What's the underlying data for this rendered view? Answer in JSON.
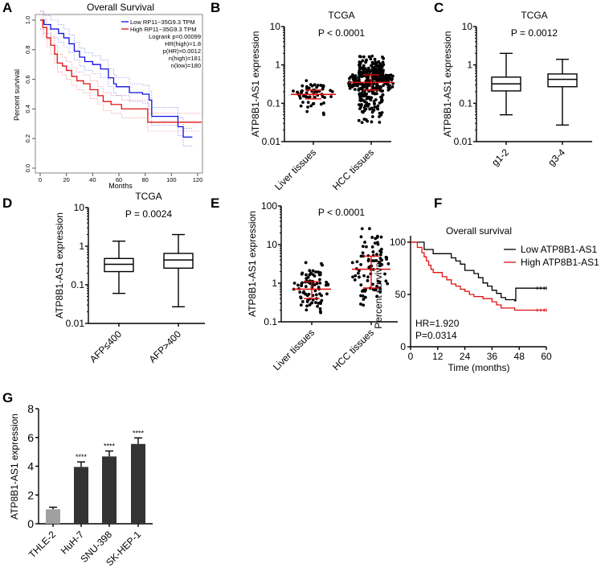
{
  "chart_data": [
    {
      "panel": "A",
      "type": "line",
      "title": "Overall Survival",
      "xlabel": "Months",
      "ylabel": "Percent survival",
      "xlim": [
        0,
        125
      ],
      "ylim": [
        0,
        1
      ],
      "xticks": [
        0,
        20,
        40,
        60,
        80,
        100,
        120
      ],
      "yticks": [
        "0.0",
        "0.2",
        "0.4",
        "0.6",
        "0.8",
        "1.0"
      ],
      "annotations": [
        "Logrank p=0.00099",
        "HR(high)=1.8",
        "p(HR)=0.0012",
        "n(high)=181",
        "n(low)=180"
      ],
      "series": [
        {
          "name": "Low RP11−35G9.3 TPM",
          "color": "#1010e0",
          "points": [
            [
              0,
              1
            ],
            [
              3,
              0.97
            ],
            [
              8,
              0.94
            ],
            [
              14,
              0.91
            ],
            [
              18,
              0.88
            ],
            [
              22,
              0.84
            ],
            [
              26,
              0.79
            ],
            [
              30,
              0.75
            ],
            [
              34,
              0.72
            ],
            [
              40,
              0.7
            ],
            [
              46,
              0.67
            ],
            [
              52,
              0.61
            ],
            [
              56,
              0.57
            ],
            [
              58,
              0.55
            ],
            [
              68,
              0.51
            ],
            [
              78,
              0.5
            ],
            [
              83,
              0.46
            ],
            [
              85,
              0.35
            ],
            [
              105,
              0.28
            ],
            [
              109,
              0.21
            ],
            [
              116,
              0.21
            ]
          ]
        },
        {
          "name": "High RP11−35G9.3 TPM",
          "color": "#e01010",
          "points": [
            [
              0,
              1
            ],
            [
              2,
              0.95
            ],
            [
              5,
              0.88
            ],
            [
              8,
              0.83
            ],
            [
              11,
              0.77
            ],
            [
              13,
              0.71
            ],
            [
              17,
              0.69
            ],
            [
              20,
              0.66
            ],
            [
              24,
              0.62
            ],
            [
              28,
              0.59
            ],
            [
              33,
              0.57
            ],
            [
              38,
              0.53
            ],
            [
              44,
              0.49
            ],
            [
              48,
              0.45
            ],
            [
              54,
              0.43
            ],
            [
              62,
              0.4
            ],
            [
              82,
              0.31
            ],
            [
              123,
              0.31
            ]
          ]
        }
      ]
    },
    {
      "panel": "B",
      "type": "scatter",
      "title": "TCGA",
      "subtitle": "P < 0.0001",
      "ylabel": "ATP8B1-AS1 expression",
      "yscale": "log",
      "ylim": [
        0.01,
        10
      ],
      "yticks": [
        "0.01",
        "0.1",
        "1",
        "10"
      ],
      "categories": [
        "Liver tissues",
        "HCC tissues"
      ],
      "groups": [
        {
          "median": 0.17,
          "q1": 0.13,
          "q3": 0.22,
          "min": 0.05,
          "max": 0.42
        },
        {
          "median": 0.35,
          "q1": 0.22,
          "q3": 0.55,
          "min": 0.027,
          "max": 2.0
        }
      ]
    },
    {
      "panel": "C",
      "type": "box",
      "title": "TCGA",
      "subtitle": "P = 0.0012",
      "ylabel": "ATP8B1-AS1 expression",
      "yscale": "log",
      "ylim": [
        0.01,
        10
      ],
      "yticks": [
        "0.01",
        "0.1",
        "1",
        "10"
      ],
      "categories": [
        "g1-2",
        "g3-4"
      ],
      "boxes": [
        {
          "min": 0.05,
          "q1": 0.21,
          "median": 0.32,
          "q3": 0.48,
          "max": 2.0
        },
        {
          "min": 0.027,
          "q1": 0.27,
          "median": 0.42,
          "q3": 0.58,
          "max": 1.4
        }
      ]
    },
    {
      "panel": "D",
      "type": "box",
      "title": "TCGA",
      "subtitle": "P = 0.0024",
      "ylabel": "ATP8B1-AS1 expression",
      "yscale": "log",
      "ylim": [
        0.01,
        10
      ],
      "yticks": [
        "0.01",
        "0.1",
        "1",
        "10"
      ],
      "categories": [
        "AFP≤400",
        "AFP>400"
      ],
      "boxes": [
        {
          "min": 0.06,
          "q1": 0.22,
          "median": 0.34,
          "q3": 0.48,
          "max": 1.35
        },
        {
          "min": 0.027,
          "q1": 0.27,
          "median": 0.44,
          "q3": 0.65,
          "max": 2.0
        }
      ]
    },
    {
      "panel": "E",
      "type": "scatter",
      "title": "",
      "subtitle": "P < 0.0001",
      "ylabel": "ATP8B1-AS1 expression",
      "yscale": "log",
      "ylim": [
        0.1,
        100
      ],
      "yticks": [
        "0.1",
        "1",
        "10",
        "100"
      ],
      "categories": [
        "Liver tissues",
        "HCC tissues"
      ],
      "groups": [
        {
          "median": 0.7,
          "q1": 0.4,
          "q3": 1.1,
          "min": 0.17,
          "max": 4.0
        },
        {
          "median": 2.3,
          "q1": 0.75,
          "q3": 5.0,
          "min": 0.25,
          "max": 35
        }
      ]
    },
    {
      "panel": "F",
      "type": "line",
      "title": "Overall survival",
      "xlabel": "Time (months)",
      "ylabel": "Percent survival",
      "xlim": [
        0,
        60
      ],
      "ylim": [
        0,
        100
      ],
      "xticks": [
        0,
        12,
        24,
        36,
        48,
        60
      ],
      "yticks": [
        "0",
        "50",
        "100"
      ],
      "annotations": [
        "HR=1.920",
        "P=0.0314"
      ],
      "series": [
        {
          "name": "Low ATP8B1-AS1",
          "color": "#000000",
          "points": [
            [
              0,
              100
            ],
            [
              6,
              93
            ],
            [
              10,
              89
            ],
            [
              16,
              89
            ],
            [
              18,
              85
            ],
            [
              20,
              82
            ],
            [
              22,
              79
            ],
            [
              24,
              73
            ],
            [
              28,
              70
            ],
            [
              30,
              66
            ],
            [
              32,
              61
            ],
            [
              34,
              58
            ],
            [
              36,
              54
            ],
            [
              38,
              51
            ],
            [
              40,
              47
            ],
            [
              42,
              45
            ],
            [
              46,
              44
            ],
            [
              46.5,
              56
            ],
            [
              60,
              56
            ]
          ]
        },
        {
          "name": "High ATP8B1-AS1",
          "color": "#e01010",
          "points": [
            [
              0,
              100
            ],
            [
              3,
              95
            ],
            [
              5,
              90
            ],
            [
              6,
              86
            ],
            [
              7,
              82
            ],
            [
              8,
              78
            ],
            [
              9,
              74
            ],
            [
              10,
              71
            ],
            [
              12,
              71
            ],
            [
              14,
              67
            ],
            [
              16,
              64
            ],
            [
              18,
              60
            ],
            [
              20,
              58
            ],
            [
              22,
              55
            ],
            [
              24,
              53
            ],
            [
              26,
              50
            ],
            [
              28,
              48
            ],
            [
              32,
              46
            ],
            [
              36,
              43
            ],
            [
              38,
              40
            ],
            [
              40,
              37
            ],
            [
              46,
              35
            ],
            [
              60,
              35
            ]
          ]
        }
      ]
    },
    {
      "panel": "G",
      "type": "bar",
      "ylabel": "ATP8B1-AS1 expression",
      "ylim": [
        0,
        8
      ],
      "yticks": [
        "0",
        "2",
        "4",
        "6",
        "8"
      ],
      "categories": [
        "THLE-2",
        "HuH-7",
        "SNU-398",
        "SK-HEP-1"
      ],
      "values": [
        1.0,
        3.95,
        4.68,
        5.55
      ],
      "errors": [
        0.15,
        0.35,
        0.38,
        0.42
      ],
      "significance": [
        "",
        "****",
        "****",
        "****"
      ],
      "colors": [
        "#a0a0a0",
        "#333333",
        "#333333",
        "#333333"
      ]
    }
  ],
  "panel_labels": [
    "A",
    "B",
    "C",
    "D",
    "E",
    "F",
    "G"
  ]
}
